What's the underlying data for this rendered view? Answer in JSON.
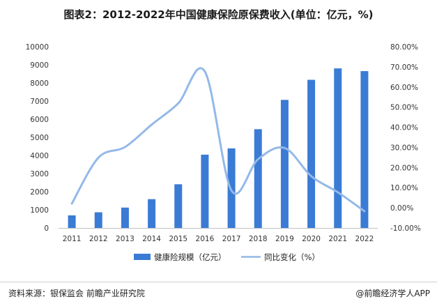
{
  "title": "图表2：2012-2022年中国健康保险原保费收入(单位：亿元，%)",
  "footer": {
    "source": "资料来源：银保监会 前瞻产业研究院",
    "brand": "@前瞻经济学人APP"
  },
  "colors": {
    "bar": "#3a7bd5",
    "line": "#93b9e8",
    "axis": "#bfbfbf"
  },
  "chart_data": {
    "type": "bar",
    "title": "图表2：2012-2022年中国健康保险原保费收入(单位：亿元，%)",
    "categories": [
      "2011",
      "2012",
      "2013",
      "2014",
      "2015",
      "2016",
      "2017",
      "2018",
      "2019",
      "2020",
      "2021",
      "2022"
    ],
    "series": [
      {
        "name": "健康险规模（亿元）",
        "type": "bar",
        "axis": "left",
        "values": [
          692,
          863,
          1123,
          1587,
          2410,
          4042,
          4389,
          5448,
          7066,
          8173,
          8803,
          8653
        ]
      },
      {
        "name": "同比变化（%）",
        "type": "line",
        "axis": "right",
        "values": [
          2.1,
          24.9,
          30.2,
          41.3,
          51.9,
          67.7,
          8.6,
          24.1,
          29.7,
          15.7,
          7.7,
          -1.7
        ]
      }
    ],
    "y_left": {
      "min": 0,
      "max": 10000,
      "ticks": [
        0,
        1000,
        2000,
        3000,
        4000,
        5000,
        6000,
        7000,
        8000,
        9000,
        10000
      ]
    },
    "y_right": {
      "min": -10,
      "max": 80,
      "ticks": [
        -10,
        0,
        10,
        20,
        30,
        40,
        50,
        60,
        70,
        80
      ],
      "tick_labels": [
        "-10.00%",
        "0.00%",
        "10.00%",
        "20.00%",
        "30.00%",
        "40.00%",
        "50.00%",
        "60.00%",
        "70.00%",
        "80.00%"
      ]
    },
    "legend": [
      "健康险规模（亿元）",
      "同比变化（%）"
    ],
    "legend_position": "bottom"
  }
}
